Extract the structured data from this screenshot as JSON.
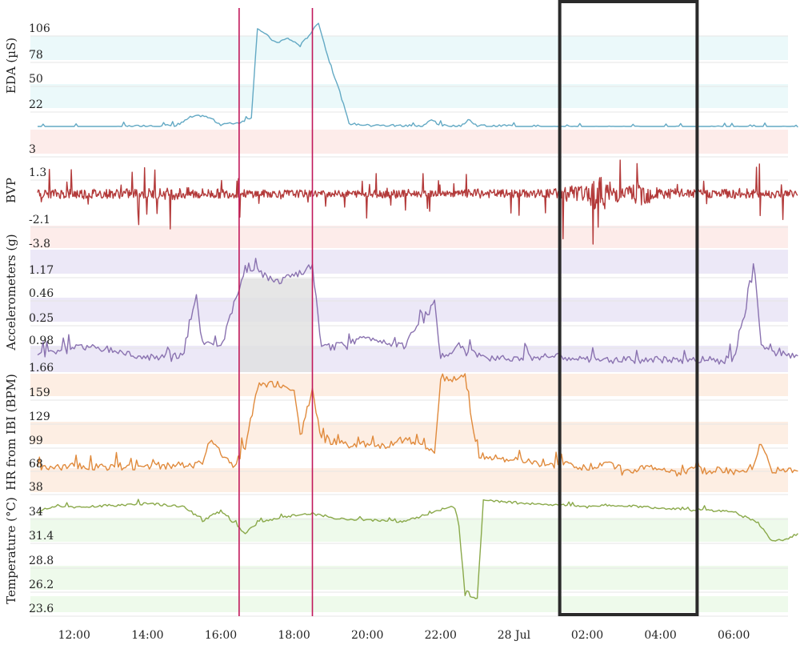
{
  "chart_data": {
    "type": "line",
    "x_axis": {
      "tick_labels": [
        "12:00",
        "14:00",
        "16:00",
        "18:00",
        "20:00",
        "22:00",
        "28 Jul",
        "02:00",
        "04:00",
        "06:00"
      ],
      "range": [
        "11:00",
        "07:45"
      ]
    },
    "panels": [
      {
        "id": "eda",
        "ylabel": "EDA (µS)",
        "tick_labels": [
          "106",
          "78",
          "50",
          "22"
        ],
        "color": "#63a9c4",
        "band_color": "#ebf9fa",
        "x": [
          "11:00",
          "13:00",
          "13:30",
          "14:50",
          "15:10",
          "15:30",
          "15:45",
          "16:00",
          "16:30",
          "16:50",
          "17:00",
          "17:30",
          "17:50",
          "18:10",
          "18:30",
          "18:40",
          "18:55",
          "19:15",
          "19:30",
          "20:00",
          "21:30",
          "21:45",
          "22:00",
          "22:30",
          "22:45",
          "23:00",
          "23:30",
          "23:45",
          "00:30",
          "01:30",
          "02:30",
          "04:00",
          "07:45"
        ],
        "y": [
          0,
          0,
          2,
          3,
          12,
          14,
          10,
          4,
          6,
          12,
          112,
          95,
          100,
          92,
          108,
          118,
          80,
          40,
          5,
          3,
          2,
          9,
          3,
          2,
          8,
          3,
          2,
          3,
          1,
          1,
          1,
          1,
          1
        ],
        "ylim": [
          0,
          125
        ]
      },
      {
        "id": "bvp",
        "ylabel": "BVP",
        "tick_labels": [
          "3",
          "1.3",
          "-2.1",
          "-3.8"
        ],
        "color": "#b33a3a",
        "band_color": "#fdecea",
        "x": [
          "11:00",
          "12:00",
          "13:00",
          "14:00",
          "15:00",
          "16:00",
          "17:00",
          "18:00",
          "19:00",
          "20:00",
          "21:00",
          "22:00",
          "23:00",
          "00:00",
          "01:00",
          "01:30",
          "02:00",
          "02:15",
          "03:00",
          "03:20",
          "04:00",
          "05:00",
          "06:00",
          "07:45"
        ],
        "amplitude": [
          0.5,
          0.7,
          0.6,
          0.7,
          0.8,
          0.6,
          0.5,
          0.5,
          0.4,
          0.5,
          0.6,
          0.3,
          0.6,
          0.5,
          0.6,
          1.2,
          0.9,
          2.5,
          0.7,
          1.8,
          0.8,
          0.5,
          0.7,
          0.5
        ],
        "ylim": [
          -3.8,
          3
        ]
      },
      {
        "id": "acc",
        "ylabel": "Accelerometers (g)",
        "tick_labels": [
          "1.17",
          "0.46",
          "0.25",
          "0.98",
          "1.66"
        ],
        "color": "#8a72b0",
        "band_color": "#ece8f7",
        "x": [
          "11:00",
          "12:00",
          "13:00",
          "14:00",
          "15:00",
          "15:20",
          "15:30",
          "16:00",
          "16:40",
          "17:00",
          "17:30",
          "18:00",
          "18:30",
          "18:45",
          "19:00",
          "20:00",
          "21:00",
          "21:50",
          "22:00",
          "22:30",
          "23:00",
          "00:00",
          "01:00",
          "02:00",
          "03:00",
          "04:00",
          "05:00",
          "06:00",
          "06:35",
          "06:45",
          "07:00",
          "07:45"
        ],
        "y": [
          0.12,
          0.22,
          0.18,
          0.1,
          0.12,
          0.72,
          0.25,
          0.2,
          0.98,
          0.95,
          0.85,
          0.9,
          1.0,
          0.2,
          0.2,
          0.3,
          0.22,
          0.65,
          0.1,
          0.22,
          0.12,
          0.1,
          0.12,
          0.08,
          0.08,
          0.08,
          0.08,
          0.1,
          0.95,
          0.2,
          0.15,
          0.12
        ],
        "ylim": [
          0,
          1.1
        ]
      },
      {
        "id": "hr",
        "ylabel": "HR from IBI (BPM)",
        "tick_labels": [
          "159",
          "129",
          "99",
          "68",
          "38"
        ],
        "color": "#e08a3c",
        "band_color": "#fdeee3",
        "x": [
          "11:00",
          "12:00",
          "13:00",
          "14:00",
          "15:00",
          "15:30",
          "15:45",
          "16:00",
          "16:20",
          "16:40",
          "17:00",
          "17:30",
          "18:00",
          "18:10",
          "18:30",
          "18:45",
          "19:00",
          "19:30",
          "20:00",
          "20:30",
          "21:00",
          "21:30",
          "21:50",
          "22:00",
          "22:10",
          "22:40",
          "23:00",
          "23:30",
          "00:30",
          "01:00",
          "01:30",
          "02:00",
          "02:30",
          "03:00",
          "04:00",
          "04:30",
          "05:00",
          "06:00",
          "06:30",
          "06:45",
          "07:00",
          "07:45"
        ],
        "y": [
          60,
          65,
          62,
          64,
          65,
          70,
          100,
          80,
          62,
          88,
          162,
          165,
          160,
          100,
          158,
          98,
          95,
          90,
          92,
          88,
          100,
          88,
          80,
          175,
          170,
          176,
          78,
          75,
          68,
          64,
          66,
          62,
          68,
          60,
          62,
          55,
          60,
          58,
          62,
          95,
          60,
          58
        ],
        "ylim": [
          35,
          175
        ]
      },
      {
        "id": "temp",
        "ylabel": "Temperature (°C)",
        "tick_labels": [
          "34",
          "31.4",
          "28.8",
          "26.2",
          "23.6"
        ],
        "color": "#8aa94a",
        "band_color": "#eefaeb",
        "x": [
          "11:00",
          "11:30",
          "12:00",
          "13:00",
          "14:00",
          "15:00",
          "15:30",
          "16:00",
          "16:40",
          "17:00",
          "18:00",
          "18:30",
          "19:00",
          "20:00",
          "21:00",
          "22:00",
          "22:20",
          "22:30",
          "22:40",
          "23:00",
          "23:10",
          "00:00",
          "01:00",
          "02:00",
          "03:00",
          "04:00",
          "05:00",
          "06:00",
          "06:40",
          "07:00",
          "07:20",
          "07:45"
        ],
        "y": [
          33.5,
          34.3,
          34.1,
          34.3,
          34.5,
          34.2,
          32.6,
          33.7,
          31.2,
          32.4,
          33.2,
          33.4,
          32.9,
          32.7,
          32.5,
          33.8,
          34.3,
          32.0,
          24.4,
          24.1,
          34.9,
          34.6,
          34.4,
          34.2,
          34.3,
          34.0,
          33.8,
          33.6,
          32.4,
          30.5,
          30.4,
          31.2
        ],
        "ylim": [
          22.5,
          35.5
        ]
      }
    ],
    "markers": {
      "vertical_lines": [
        "16:30",
        "18:30"
      ],
      "vertical_line_color": "#c2185b",
      "highlight_box": [
        "01:15",
        "05:00"
      ],
      "highlight_box_color": "#2a2a2a"
    }
  }
}
